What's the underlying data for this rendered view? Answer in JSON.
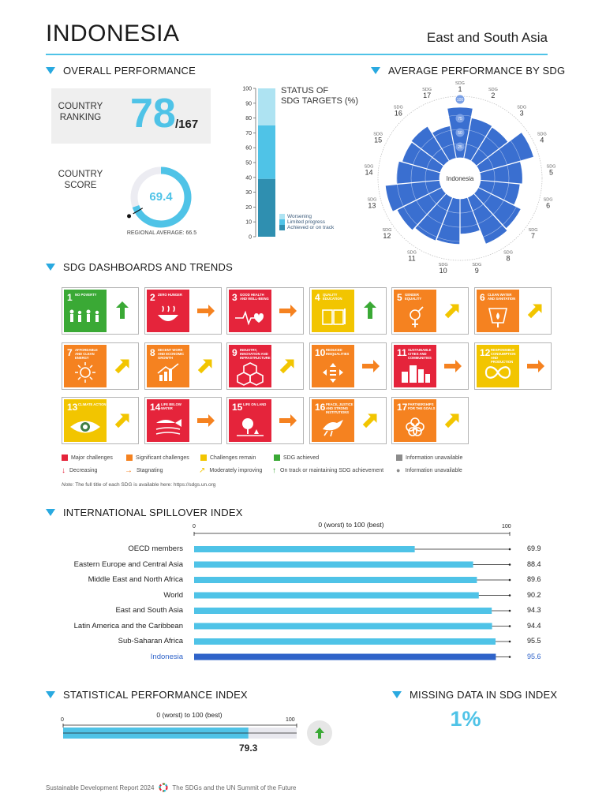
{
  "header": {
    "country": "INDONESIA",
    "region": "East and South Asia"
  },
  "overall": {
    "title": "OVERALL PERFORMANCE",
    "ranking_label_1": "COUNTRY",
    "ranking_label_2": "RANKING",
    "rank": "78",
    "rank_total": "/167",
    "score_label_1": "COUNTRY",
    "score_label_2": "SCORE",
    "score": "69.4",
    "score_value": 69.4,
    "regional_average": "REGIONAL AVERAGE: 66.5",
    "regional_average_value": 66.5
  },
  "status": {
    "title_1": "STATUS OF",
    "title_2": "SDG TARGETS (%)",
    "ticks": [
      "0",
      "10",
      "20",
      "30",
      "40",
      "50",
      "60",
      "70",
      "80",
      "90",
      "100"
    ],
    "legend": [
      {
        "label": "Worsening",
        "color": "#aee3f2"
      },
      {
        "label": "Limited progress",
        "color": "#4fc3e7"
      },
      {
        "label": "Achieved or on track",
        "color": "#2f8fb0"
      }
    ]
  },
  "avg_sdg": {
    "title": "AVERAGE PERFORMANCE BY SDG",
    "center": "Indonesia",
    "rings": [
      "25",
      "50",
      "75",
      "100"
    ],
    "sdg_word": "SDG",
    "goals": [
      "1",
      "2",
      "3",
      "4",
      "5",
      "6",
      "7",
      "8",
      "9",
      "10",
      "11",
      "12",
      "13",
      "14",
      "15",
      "16",
      "17"
    ]
  },
  "chart_data": [
    {
      "type": "bar",
      "title": "STATUS OF SDG TARGETS (%)",
      "stacked": true,
      "ylim": [
        0,
        100
      ],
      "series": [
        {
          "name": "Achieved or on track",
          "values": [
            39
          ]
        },
        {
          "name": "Limited progress",
          "values": [
            36
          ]
        },
        {
          "name": "Worsening",
          "values": [
            25
          ]
        }
      ]
    },
    {
      "type": "bar",
      "subtype": "radial",
      "title": "AVERAGE PERFORMANCE BY SDG",
      "categories": [
        "SDG 1",
        "SDG 2",
        "SDG 3",
        "SDG 4",
        "SDG 5",
        "SDG 6",
        "SDG 7",
        "SDG 8",
        "SDG 9",
        "SDG 10",
        "SDG 11",
        "SDG 12",
        "SDG 13",
        "SDG 14",
        "SDG 15",
        "SDG 16",
        "SDG 17"
      ],
      "values": [
        89,
        72,
        70,
        99,
        74,
        70,
        84,
        88,
        62,
        80,
        82,
        88,
        96,
        76,
        70,
        72,
        58
      ],
      "ylim": [
        0,
        100
      ]
    },
    {
      "type": "bar",
      "orientation": "horizontal",
      "title": "INTERNATIONAL SPILLOVER INDEX",
      "xlabel": "0 (worst) to 100 (best)",
      "xlim": [
        0,
        100
      ],
      "categories": [
        "OECD members",
        "Eastern Europe and Central Asia",
        "Middle East and North Africa",
        "World",
        "East and South Asia",
        "Latin America and the Caribbean",
        "Sub-Saharan Africa",
        "Indonesia"
      ],
      "values": [
        69.9,
        88.4,
        89.6,
        90.2,
        94.3,
        94.4,
        95.5,
        95.6
      ]
    },
    {
      "type": "bar",
      "orientation": "horizontal",
      "title": "STATISTICAL PERFORMANCE INDEX",
      "xlabel": "0 (worst) to 100 (best)",
      "xlim": [
        0,
        100
      ],
      "categories": [
        "Indonesia"
      ],
      "values": [
        79.3
      ]
    }
  ],
  "dashboards": {
    "title": "SDG DASHBOARDS AND TRENDS",
    "tiles": [
      {
        "num": "1",
        "title": "No poverty",
        "color": "#e5243b",
        "icon": "family-icon",
        "status": "#3aa935",
        "arrow": "up"
      },
      {
        "num": "2",
        "title": "Zero hunger",
        "color": "#dda63a",
        "icon": "bowl-icon",
        "status": "#e5243b",
        "arrow": "right"
      },
      {
        "num": "3",
        "title": "Good health and well-being",
        "color": "#4c9f38",
        "icon": "heartbeat-icon",
        "status": "#e5243b",
        "arrow": "right"
      },
      {
        "num": "4",
        "title": "Quality education",
        "color": "#c5192d",
        "icon": "book-icon",
        "status": "#f2c500",
        "arrow": "up"
      },
      {
        "num": "5",
        "title": "Gender equality",
        "color": "#ff3a21",
        "icon": "gender-icon",
        "status": "#f58220",
        "arrow": "upright"
      },
      {
        "num": "6",
        "title": "Clean water and sanitation",
        "color": "#26bde2",
        "icon": "water-icon",
        "status": "#f58220",
        "arrow": "upright"
      },
      {
        "num": "7",
        "title": "Affordable and clean energy",
        "color": "#fcc30b",
        "icon": "sun-icon",
        "status": "#f58220",
        "arrow": "upright"
      },
      {
        "num": "8",
        "title": "Decent work and economic growth",
        "color": "#a21942",
        "icon": "growth-icon",
        "status": "#f58220",
        "arrow": "upright"
      },
      {
        "num": "9",
        "title": "Industry, innovation and infrastructure",
        "color": "#fd6925",
        "icon": "cubes-icon",
        "status": "#e5243b",
        "arrow": "upright"
      },
      {
        "num": "10",
        "title": "Reduced inequalities",
        "color": "#dd1367",
        "icon": "equality-icon",
        "status": "#f58220",
        "arrow": "right"
      },
      {
        "num": "11",
        "title": "Sustainable cities and communities",
        "color": "#fd9d24",
        "icon": "city-icon",
        "status": "#e5243b",
        "arrow": "right"
      },
      {
        "num": "12",
        "title": "Responsible consumption and production",
        "color": "#bf8b2e",
        "icon": "infinity-icon",
        "status": "#f2c500",
        "arrow": "right"
      },
      {
        "num": "13",
        "title": "Climate action",
        "color": "#3f7e44",
        "icon": "eye-icon",
        "status": "#f2c500",
        "arrow": "upright"
      },
      {
        "num": "14",
        "title": "Life below water",
        "color": "#0a97d9",
        "icon": "fish-icon",
        "status": "#e5243b",
        "arrow": "right"
      },
      {
        "num": "15",
        "title": "Life on land",
        "color": "#56c02b",
        "icon": "tree-icon",
        "status": "#e5243b",
        "arrow": "right"
      },
      {
        "num": "16",
        "title": "Peace, justice and strong institutions",
        "color": "#00689d",
        "icon": "dove-icon",
        "status": "#f58220",
        "arrow": "upright"
      },
      {
        "num": "17",
        "title": "Partnerships for the goals",
        "color": "#19486a",
        "icon": "rings-icon",
        "status": "#f58220",
        "arrow": "upright"
      }
    ],
    "legend_status": [
      {
        "label": "Major challenges",
        "color": "#e5243b"
      },
      {
        "label": "Significant challenges",
        "color": "#f58220"
      },
      {
        "label": "Challenges remain",
        "color": "#f2c500"
      },
      {
        "label": "SDG achieved",
        "color": "#3aa935"
      },
      {
        "label": "Information unavailable",
        "color": "#8c8c8c"
      }
    ],
    "legend_trend": [
      {
        "label": "Decreasing",
        "color": "#e5243b",
        "arrow": "down"
      },
      {
        "label": "Stagnating",
        "color": "#f58220",
        "arrow": "right"
      },
      {
        "label": "Moderately improving",
        "color": "#f2c500",
        "arrow": "upright"
      },
      {
        "label": "On track or maintaining SDG achievement",
        "color": "#3aa935",
        "arrow": "up"
      },
      {
        "label": "Information unavailable",
        "color": "#8c8c8c",
        "arrow": "dot"
      }
    ],
    "note_label": "Note:",
    "note": "The full title of each SDG is available here: https://sdgs.un.org"
  },
  "spillover": {
    "title": "INTERNATIONAL SPILLOVER INDEX",
    "axis_label": "0 (worst) to 100 (best)",
    "tick_min": "0",
    "tick_max": "100",
    "rows": [
      {
        "label": "OECD members",
        "value": "69.9"
      },
      {
        "label": "Eastern Europe and Central Asia",
        "value": "88.4"
      },
      {
        "label": "Middle East and North Africa",
        "value": "89.6"
      },
      {
        "label": "World",
        "value": "90.2"
      },
      {
        "label": "East and South Asia",
        "value": "94.3"
      },
      {
        "label": "Latin America and the Caribbean",
        "value": "94.4"
      },
      {
        "label": "Sub-Saharan Africa",
        "value": "95.5"
      },
      {
        "label": "Indonesia",
        "value": "95.6"
      }
    ]
  },
  "spi": {
    "title": "STATISTICAL PERFORMANCE INDEX",
    "axis_label": "0 (worst) to 100 (best)",
    "tick_min": "0",
    "tick_max": "100",
    "value": "79.3",
    "trend": "up"
  },
  "missing": {
    "title": "MISSING DATA IN SDG INDEX",
    "value": "1%"
  },
  "footer": {
    "report": "Sustainable Development Report 2024",
    "subtitle": "The SDGs and the UN Summit of the Future"
  },
  "colors": {
    "accent": "#4fc3e7",
    "dark_accent": "#29a9e0",
    "radial_fill": "#3a6fd0",
    "highlight": "#2f63c9"
  }
}
